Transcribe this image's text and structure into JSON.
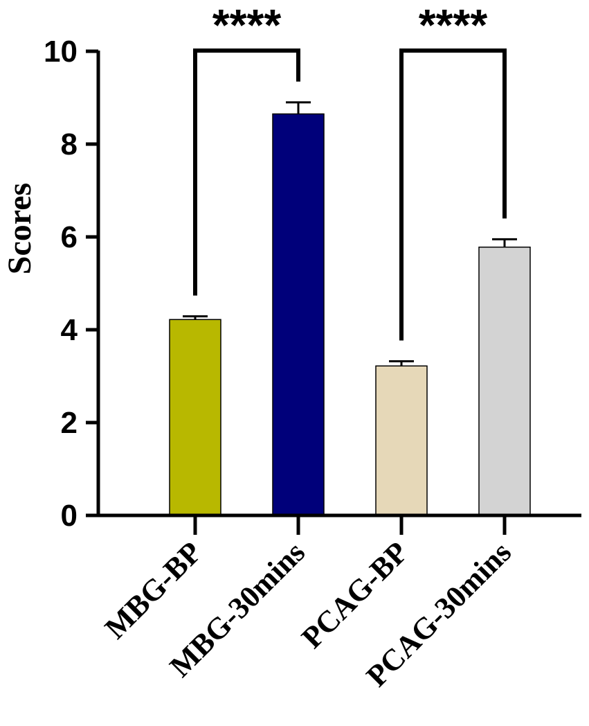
{
  "chart_data": {
    "type": "bar",
    "title": "",
    "xlabel": "",
    "ylabel": "Scores",
    "ylim": [
      0,
      10
    ],
    "yticks": [
      0,
      2,
      4,
      6,
      8,
      10
    ],
    "categories": [
      "MBG-BP",
      "MBG-30mins",
      "PCAG-BP",
      "PCAG-30mins"
    ],
    "values": [
      4.22,
      8.65,
      3.22,
      5.78
    ],
    "errors": [
      0.07,
      0.25,
      0.1,
      0.17
    ],
    "colors": [
      "#b8b800",
      "#00007a",
      "#e6d8b8",
      "#d3d3d3"
    ],
    "significance": [
      {
        "from": 0,
        "to": 1,
        "label": "****"
      },
      {
        "from": 2,
        "to": 3,
        "label": "****"
      }
    ]
  }
}
